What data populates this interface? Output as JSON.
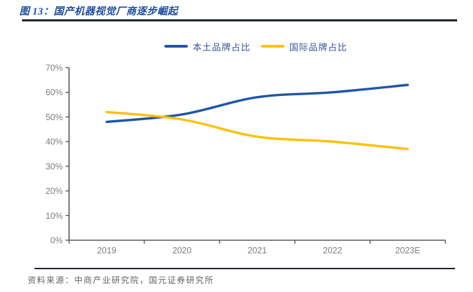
{
  "page": {
    "title": "图 13：国产机器视觉厂商逐步崛起",
    "source": "资料来源：中商产业研究院，国元证券研究所"
  },
  "chart_data": {
    "type": "line",
    "title": "国产机器视觉厂商逐步崛起",
    "categories": [
      "2019",
      "2020",
      "2021",
      "2022",
      "2023E"
    ],
    "series": [
      {
        "name": "本土品牌占比",
        "color": "#1e56a8",
        "values": [
          48,
          51,
          58,
          60,
          63
        ]
      },
      {
        "name": "国际品牌占比",
        "color": "#ffc000",
        "values": [
          52,
          49,
          42,
          40,
          37
        ]
      }
    ],
    "xlabel": "",
    "ylabel": "",
    "ylim": [
      0,
      70
    ],
    "ytick_step": 10,
    "ytick_format": "percent",
    "ytick_labels": [
      "0%",
      "10%",
      "20%",
      "30%",
      "40%",
      "50%",
      "60%",
      "70%"
    ],
    "grid": false,
    "legend_position": "top-center",
    "line_style": "smooth",
    "axis_color": "#595959",
    "tick_label_color": "#7f7f7f"
  }
}
